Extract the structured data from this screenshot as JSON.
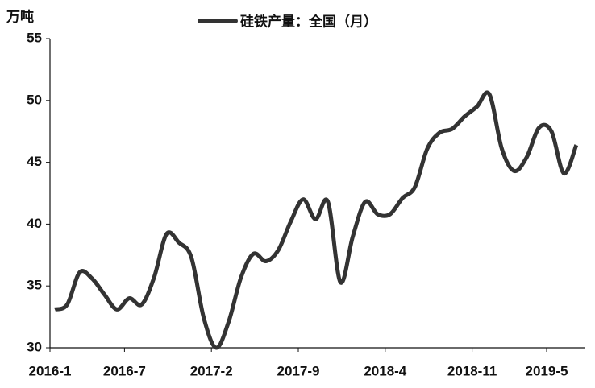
{
  "chart_data": {
    "type": "line",
    "unit_label": "万吨",
    "categories": [
      "2016-1",
      null,
      null,
      null,
      null,
      null,
      "2016-7",
      null,
      null,
      null,
      null,
      null,
      null,
      "2017-2",
      null,
      null,
      null,
      null,
      null,
      null,
      "2017-9",
      null,
      null,
      null,
      null,
      null,
      null,
      "2018-4",
      null,
      null,
      null,
      null,
      null,
      null,
      "2018-11",
      null,
      null,
      null,
      null,
      null,
      "2019-5",
      null,
      null
    ],
    "series": [
      {
        "name": "硅铁产量：全国（月）",
        "color": "#333333",
        "values": [
          33.1,
          33.5,
          36.1,
          35.6,
          34.3,
          33.1,
          34.0,
          33.5,
          35.7,
          39.2,
          38.5,
          37.3,
          32.4,
          30.0,
          32.1,
          35.7,
          37.6,
          37.0,
          37.9,
          40.2,
          42.0,
          40.4,
          41.8,
          35.3,
          39.0,
          41.8,
          40.8,
          40.8,
          42.1,
          43.0,
          46.1,
          47.4,
          47.7,
          48.7,
          49.5,
          50.5,
          46.1,
          44.3,
          45.4,
          47.8,
          47.5,
          44.1,
          46.4
        ]
      }
    ],
    "ylim": [
      30,
      55
    ],
    "yticks": [
      30,
      35,
      40,
      45,
      50,
      55
    ],
    "grid": false,
    "legend": "top"
  }
}
